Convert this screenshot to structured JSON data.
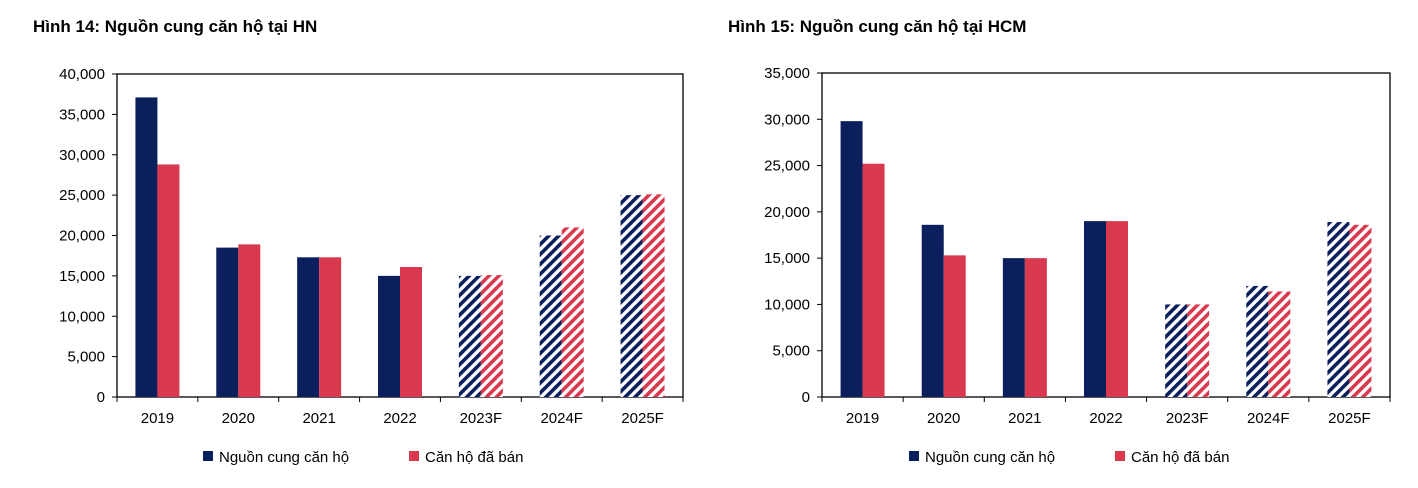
{
  "colors": {
    "supply": "#0b1f5c",
    "sold": "#d9394e"
  },
  "chart_data": [
    {
      "type": "bar",
      "title": "Hình 14: Nguồn cung căn hộ tại HN",
      "categories": [
        "2019",
        "2020",
        "2021",
        "2022",
        "2023F",
        "2024F",
        "2025F"
      ],
      "forecast_categories": [
        "2023F",
        "2024F",
        "2025F"
      ],
      "ylim": [
        0,
        40000
      ],
      "yticks": [
        0,
        5000,
        10000,
        15000,
        20000,
        25000,
        30000,
        35000,
        40000
      ],
      "ytick_labels": [
        "0",
        "5,000",
        "10,000",
        "15,000",
        "20,000",
        "25,000",
        "30,000",
        "35,000",
        "40,000"
      ],
      "grid": false,
      "legend_position": "bottom",
      "series": [
        {
          "name": "Nguồn cung căn hộ",
          "values": [
            37100,
            18500,
            17300,
            15000,
            15000,
            20000,
            25000
          ]
        },
        {
          "name": "Căn hộ đã bán",
          "values": [
            28800,
            18900,
            17300,
            16100,
            15100,
            21000,
            25100
          ]
        }
      ]
    },
    {
      "type": "bar",
      "title": "Hình 15: Nguồn cung căn hộ tại HCM",
      "categories": [
        "2019",
        "2020",
        "2021",
        "2022",
        "2023F",
        "2024F",
        "2025F"
      ],
      "forecast_categories": [
        "2023F",
        "2024F",
        "2025F"
      ],
      "ylim": [
        0,
        35000
      ],
      "yticks": [
        0,
        5000,
        10000,
        15000,
        20000,
        25000,
        30000,
        35000
      ],
      "ytick_labels": [
        "0",
        "5,000",
        "10,000",
        "15,000",
        "20,000",
        "25,000",
        "30,000",
        "35,000"
      ],
      "grid": false,
      "legend_position": "bottom",
      "series": [
        {
          "name": "Nguồn cung căn hộ",
          "values": [
            29800,
            18600,
            15000,
            19000,
            10000,
            12000,
            18900
          ]
        },
        {
          "name": "Căn hộ đã bán",
          "values": [
            25200,
            15300,
            15000,
            19000,
            10000,
            11400,
            18600
          ]
        }
      ]
    }
  ]
}
